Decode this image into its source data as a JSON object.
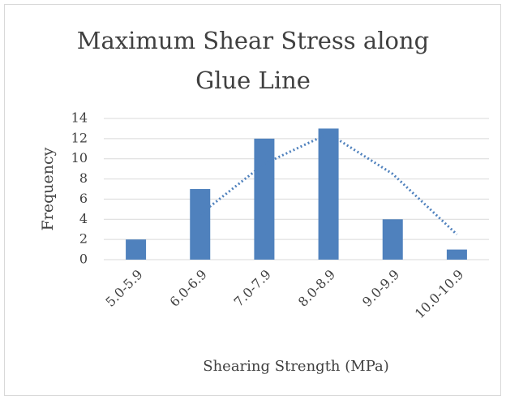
{
  "chart_data": {
    "type": "bar",
    "title": [
      "Maximum Shear Stress along",
      "Glue Line"
    ],
    "x_label": "Shearing Strength (MPa)",
    "y_label": "Frequency",
    "categories": [
      "5.0-5.9",
      "6.0-6.9",
      "7.0-7.9",
      "8.0-8.9",
      "9.0-9.9",
      "10.0-10.9"
    ],
    "values": [
      2,
      7,
      12,
      13,
      4,
      1
    ],
    "color": "#4f81bd",
    "trendline": {
      "values": [
        null,
        4.5,
        9.5,
        12.5,
        8.5,
        2.5
      ],
      "color": "#4f81bd",
      "style": "dotted"
    },
    "ylim": [
      0,
      14
    ],
    "yticks": [
      0,
      2,
      4,
      6,
      8,
      10,
      12,
      14
    ],
    "grid": true
  }
}
